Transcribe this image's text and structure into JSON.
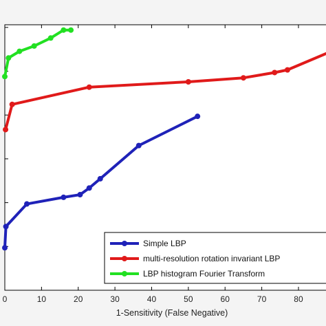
{
  "chart_data": {
    "type": "line",
    "title": "",
    "xlabel": "1-Sensitivity (False Negative)",
    "ylabel": "",
    "xlim": [
      0,
      89
    ],
    "ylim": [
      0,
      100
    ],
    "x_ticks": [
      0,
      10,
      20,
      30,
      40,
      50,
      60,
      70,
      80
    ],
    "x_tick_labels": [
      "0",
      "10",
      "20",
      "30",
      "40",
      "50",
      "60",
      "70",
      "80"
    ],
    "y_ticks": [
      0,
      16.5,
      33,
      49.5,
      66,
      82.5,
      99
    ],
    "grid": false,
    "legend_position": "bottom-right",
    "series": [
      {
        "name": "Simple LBP",
        "color": "#1f22b8",
        "x": [
          0,
          0.3,
          6,
          16,
          20.5,
          23,
          26,
          36.5,
          52.5
        ],
        "y": [
          16,
          24,
          32.5,
          35,
          36,
          38.5,
          42,
          54.5,
          65.5
        ]
      },
      {
        "name": "multi-resolution rotation invariant LBP",
        "color": "#e01a1a",
        "x": [
          0.2,
          2,
          23,
          50,
          65,
          73.5,
          77,
          89
        ],
        "y": [
          60.5,
          70,
          76.5,
          78.5,
          80,
          82,
          83,
          90
        ]
      },
      {
        "name": "LBP histogram Fourier Transform",
        "color": "#22e022",
        "x": [
          0,
          1,
          4,
          8,
          12.5,
          16,
          18
        ],
        "y": [
          80.5,
          87.5,
          90,
          92,
          95,
          98,
          98
        ]
      }
    ]
  }
}
